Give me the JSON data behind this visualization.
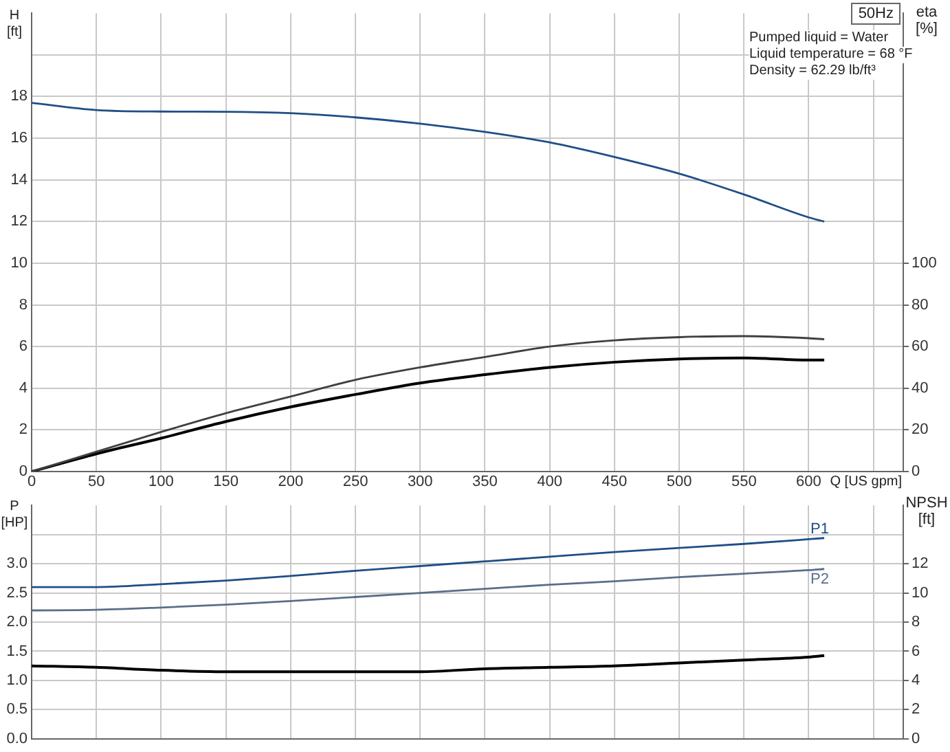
{
  "chart_data": [
    {
      "type": "line",
      "title": "50Hz",
      "xlabel": "Q [US gpm]",
      "ylabel": "H [ft]",
      "y2label": "eta [%]",
      "annotations": [
        "Pumped liquid = Water",
        "Liquid temperature = 68 °F",
        "Density = 62.29 lb/ft³"
      ],
      "x": [
        0,
        50,
        100,
        150,
        200,
        250,
        300,
        350,
        400,
        450,
        500,
        550,
        600,
        612
      ],
      "series": [
        {
          "color": "#1f4e87",
          "values": [
            17.7,
            17.35,
            17.28,
            17.27,
            17.2,
            17.0,
            16.7,
            16.3,
            15.8,
            15.1,
            14.3,
            13.3,
            12.2,
            12.0
          ]
        },
        {
          "color": "#404040",
          "axis": "y2",
          "values": [
            0,
            9.5,
            19,
            28,
            36,
            44,
            50,
            55,
            60,
            63,
            64.5,
            65,
            64,
            63.5
          ]
        },
        {
          "color": "#000000",
          "axis": "y2",
          "values": [
            0,
            8.5,
            16,
            24,
            31,
            37,
            42.5,
            46.5,
            50,
            52.5,
            54,
            54.5,
            53.5,
            53.5
          ]
        }
      ],
      "xlim": [
        0,
        673
      ],
      "xticks": [
        0,
        50,
        100,
        150,
        200,
        250,
        300,
        350,
        400,
        450,
        500,
        550,
        600,
        {
          "value": 650,
          "label": null
        }
      ],
      "ylim": [
        0,
        22
      ],
      "yticks": [
        0,
        2,
        4,
        6,
        8,
        10,
        12,
        14,
        16,
        18,
        {
          "value": 20,
          "label": null
        }
      ],
      "y2lim": [
        0,
        220
      ],
      "y2ticks": [
        0,
        20,
        40,
        60,
        80,
        100
      ],
      "grid": true,
      "legend": false
    },
    {
      "type": "line",
      "ylabel": "P [HP]",
      "y2label": "NPSH [ft]",
      "x": [
        0,
        50,
        100,
        150,
        200,
        250,
        300,
        350,
        400,
        450,
        500,
        550,
        600,
        612
      ],
      "series": [
        {
          "name": "P1",
          "color": "#1f4e87",
          "values": [
            2.6,
            2.6,
            2.65,
            2.71,
            2.79,
            2.88,
            2.96,
            3.04,
            3.12,
            3.2,
            3.27,
            3.34,
            3.42,
            3.44
          ]
        },
        {
          "name": "P2",
          "color": "#5a6e88",
          "values": [
            2.2,
            2.21,
            2.25,
            2.3,
            2.36,
            2.43,
            2.5,
            2.57,
            2.64,
            2.7,
            2.77,
            2.83,
            2.89,
            2.91
          ]
        },
        {
          "color": "#000000",
          "axis": "y2",
          "values": [
            5.0,
            4.9,
            4.7,
            4.6,
            4.6,
            4.6,
            4.6,
            4.8,
            4.9,
            5.0,
            5.2,
            5.4,
            5.6,
            5.7
          ]
        }
      ],
      "xlim": [
        0,
        673
      ],
      "xticks": [
        0,
        50,
        100,
        150,
        200,
        250,
        300,
        350,
        400,
        450,
        500,
        550,
        600,
        650
      ],
      "ylim": [
        0,
        4
      ],
      "yticks": [
        {
          "value": 0,
          "label": "0.0"
        },
        0.5,
        {
          "value": 1,
          "label": "1.0"
        },
        1.5,
        {
          "value": 2,
          "label": "2.0"
        },
        2.5,
        {
          "value": 3,
          "label": "3.0"
        },
        {
          "value": 3.5,
          "label": null
        }
      ],
      "y2lim": [
        0,
        16
      ],
      "y2ticks": [
        0,
        2,
        4,
        6,
        8,
        10,
        12
      ],
      "tick_labels": "y",
      "grid": true,
      "legend": false
    }
  ]
}
